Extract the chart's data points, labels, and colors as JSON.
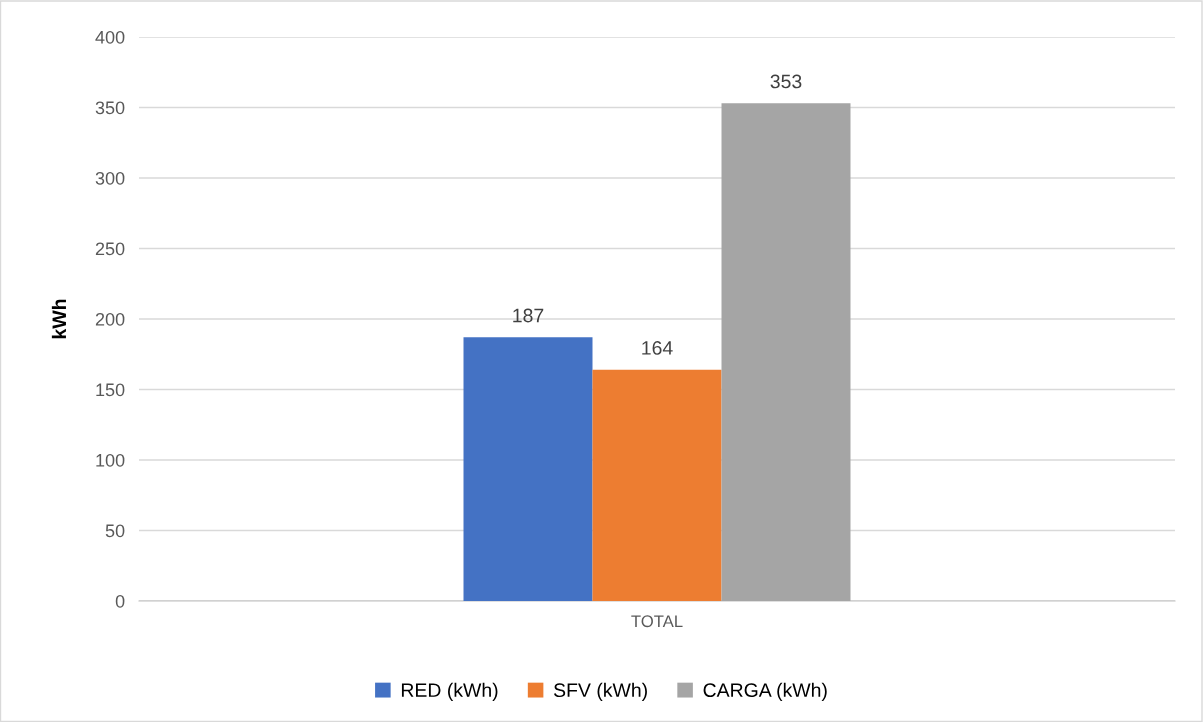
{
  "chart_data": {
    "type": "bar",
    "ylabel": "kWh",
    "categories": [
      "TOTAL"
    ],
    "series": [
      {
        "name": "RED (kWh)",
        "color": "#4472c4",
        "values": [
          187
        ]
      },
      {
        "name": "SFV (kWh)",
        "color": "#ed7d31",
        "values": [
          164
        ]
      },
      {
        "name": "CARGA (kWh)",
        "color": "#a5a5a5",
        "values": [
          353
        ]
      }
    ],
    "ylim": [
      0,
      400
    ],
    "yticks": [
      0,
      50,
      100,
      150,
      200,
      250,
      300,
      350,
      400
    ],
    "grid": "y",
    "legend": "bottom",
    "data_labels": true
  }
}
